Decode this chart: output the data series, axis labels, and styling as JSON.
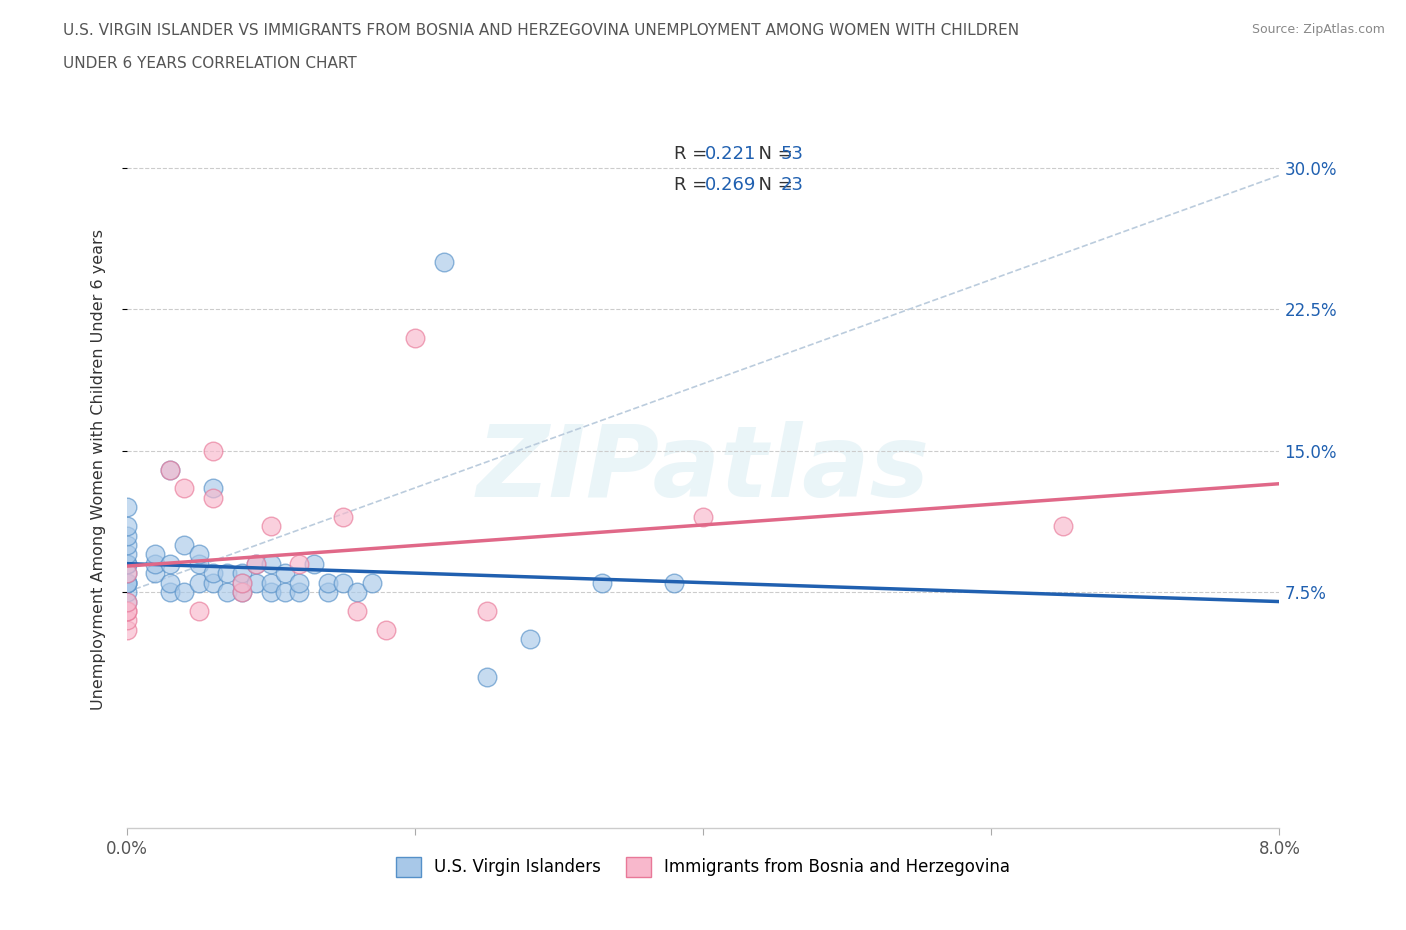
{
  "title_line1": "U.S. VIRGIN ISLANDER VS IMMIGRANTS FROM BOSNIA AND HERZEGOVINA UNEMPLOYMENT AMONG WOMEN WITH CHILDREN",
  "title_line2": "UNDER 6 YEARS CORRELATION CHART",
  "source": "Source: ZipAtlas.com",
  "ylabel": "Unemployment Among Women with Children Under 6 years",
  "xlim": [
    0.0,
    0.08
  ],
  "ylim_low": -0.05,
  "ylim_high": 0.33,
  "ytick_positions": [
    0.075,
    0.15,
    0.225,
    0.3
  ],
  "ytick_labels": [
    "7.5%",
    "15.0%",
    "22.5%",
    "30.0%"
  ],
  "xtick_positions": [
    0.0,
    0.02,
    0.04,
    0.06,
    0.08
  ],
  "xtick_labels": [
    "0.0%",
    "",
    "",
    "",
    "8.0%"
  ],
  "blue_fill": "#a8c8e8",
  "blue_edge": "#5590c8",
  "pink_fill": "#f8b8cc",
  "pink_edge": "#e87898",
  "blue_line_color": "#2060b0",
  "pink_line_color": "#e06888",
  "dashed_line_color": "#bbccdd",
  "value_color": "#2060b0",
  "R_blue": "0.221",
  "N_blue": "53",
  "R_pink": "0.269",
  "N_pink": "23",
  "legend_blue_label": "U.S. Virgin Islanders",
  "legend_pink_label": "Immigrants from Bosnia and Herzegovina",
  "watermark": "ZIPatlas",
  "blue_scatter_x": [
    0.0,
    0.0,
    0.0,
    0.0,
    0.0,
    0.0,
    0.0,
    0.0,
    0.0,
    0.0,
    0.0,
    0.0,
    0.0,
    0.002,
    0.002,
    0.002,
    0.003,
    0.003,
    0.003,
    0.003,
    0.004,
    0.004,
    0.005,
    0.005,
    0.005,
    0.006,
    0.006,
    0.006,
    0.007,
    0.007,
    0.008,
    0.008,
    0.008,
    0.009,
    0.009,
    0.01,
    0.01,
    0.01,
    0.011,
    0.011,
    0.012,
    0.012,
    0.013,
    0.014,
    0.014,
    0.015,
    0.016,
    0.017,
    0.022,
    0.025,
    0.028,
    0.033,
    0.038
  ],
  "blue_scatter_y": [
    0.07,
    0.075,
    0.08,
    0.08,
    0.08,
    0.085,
    0.09,
    0.09,
    0.095,
    0.1,
    0.105,
    0.11,
    0.12,
    0.085,
    0.09,
    0.095,
    0.075,
    0.08,
    0.09,
    0.14,
    0.075,
    0.1,
    0.08,
    0.09,
    0.095,
    0.08,
    0.085,
    0.13,
    0.075,
    0.085,
    0.075,
    0.08,
    0.085,
    0.08,
    0.09,
    0.075,
    0.08,
    0.09,
    0.075,
    0.085,
    0.075,
    0.08,
    0.09,
    0.075,
    0.08,
    0.08,
    0.075,
    0.08,
    0.25,
    0.03,
    0.05,
    0.08,
    0.08
  ],
  "pink_scatter_x": [
    0.0,
    0.0,
    0.0,
    0.0,
    0.0,
    0.0,
    0.003,
    0.004,
    0.005,
    0.006,
    0.006,
    0.008,
    0.008,
    0.009,
    0.01,
    0.012,
    0.015,
    0.016,
    0.018,
    0.02,
    0.025,
    0.04,
    0.065
  ],
  "pink_scatter_y": [
    0.055,
    0.06,
    0.065,
    0.065,
    0.07,
    0.085,
    0.14,
    0.13,
    0.065,
    0.125,
    0.15,
    0.075,
    0.08,
    0.09,
    0.11,
    0.09,
    0.115,
    0.065,
    0.055,
    0.21,
    0.065,
    0.115,
    0.11
  ],
  "figsize": [
    14.06,
    9.3
  ],
  "dpi": 100
}
